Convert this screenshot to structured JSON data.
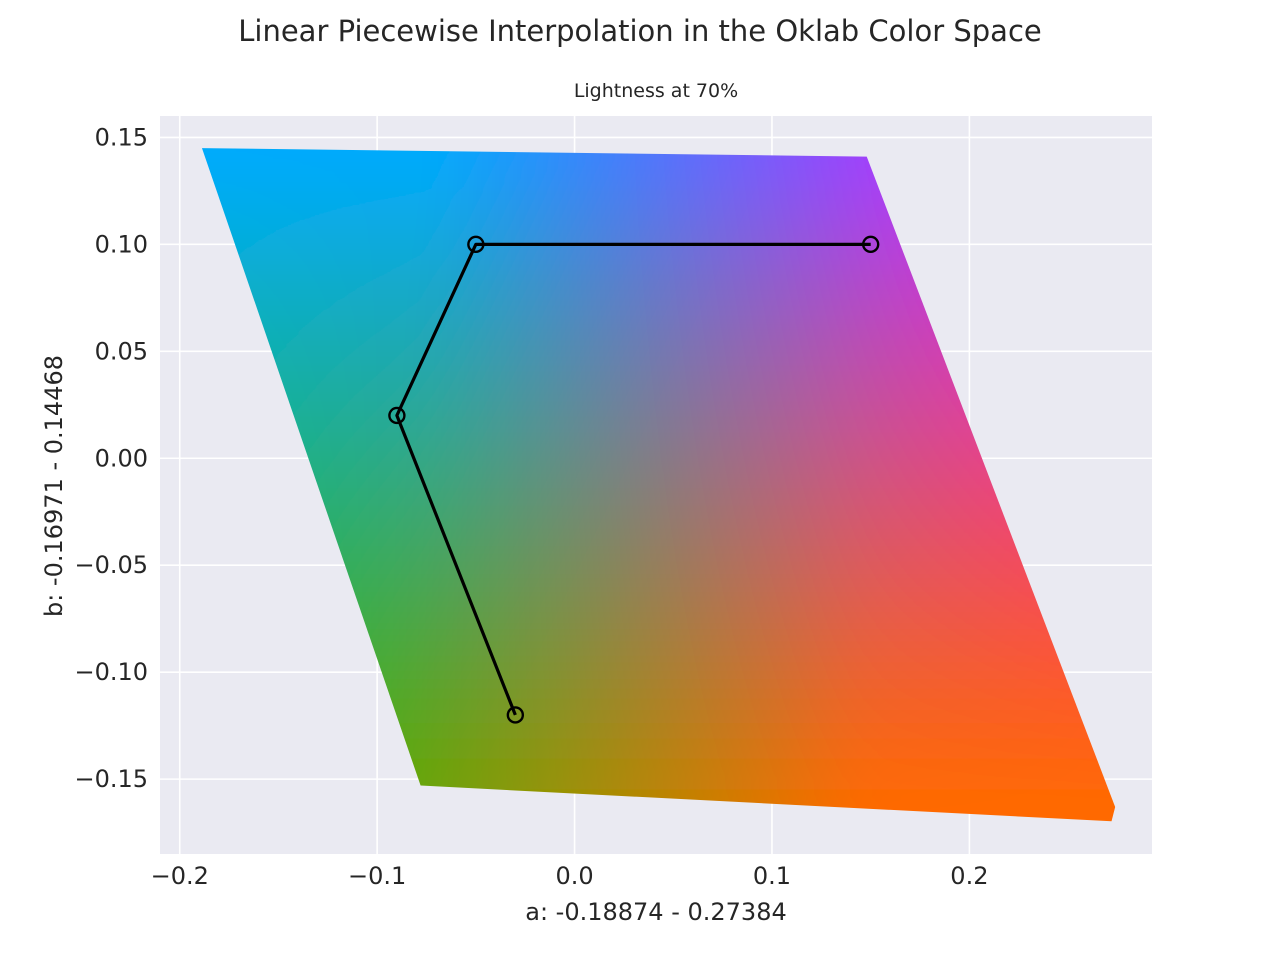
{
  "chart_data": {
    "type": "line",
    "title": "Linear Piecewise Interpolation in the Oklab Color Space",
    "subtitle": "Lightness at 70%",
    "xlabel": "a: -0.18874 - 0.27384",
    "ylabel": "b: -0.16971 - 0.14468",
    "xlim": [
      -0.21,
      0.2925
    ],
    "ylim": [
      -0.185,
      0.16
    ],
    "xticks": [
      -0.2,
      -0.1,
      0.0,
      0.1,
      0.2
    ],
    "xtick_labels": [
      "−0.2",
      "−0.1",
      "0.0",
      "0.1",
      "0.2"
    ],
    "yticks": [
      -0.15,
      -0.1,
      -0.05,
      0.0,
      0.05,
      0.1,
      0.15
    ],
    "ytick_labels": [
      "−0.15",
      "−0.10",
      "−0.05",
      "0.00",
      "0.05",
      "0.10",
      "0.15"
    ],
    "grid": true,
    "background": "#eaeaf2",
    "gamut_region": {
      "polygon": [
        [
          -0.18874,
          0.145
        ],
        [
          0.148,
          0.141
        ],
        [
          0.27384,
          -0.163
        ],
        [
          0.272,
          -0.16971
        ],
        [
          -0.078,
          -0.153
        ]
      ],
      "corner_colors": {
        "top_left": "#1ec400",
        "top_right": "#ff6a00",
        "bottom_right": "#ff00ff",
        "bottom_left": "#00aaff"
      }
    },
    "series": [
      {
        "values": [
          [
            0.15,
            0.1
          ],
          [
            -0.05,
            0.1
          ],
          [
            -0.09,
            0.02
          ],
          [
            -0.03,
            -0.12
          ]
        ],
        "line_color": "#000000",
        "marker": "circle"
      }
    ]
  }
}
